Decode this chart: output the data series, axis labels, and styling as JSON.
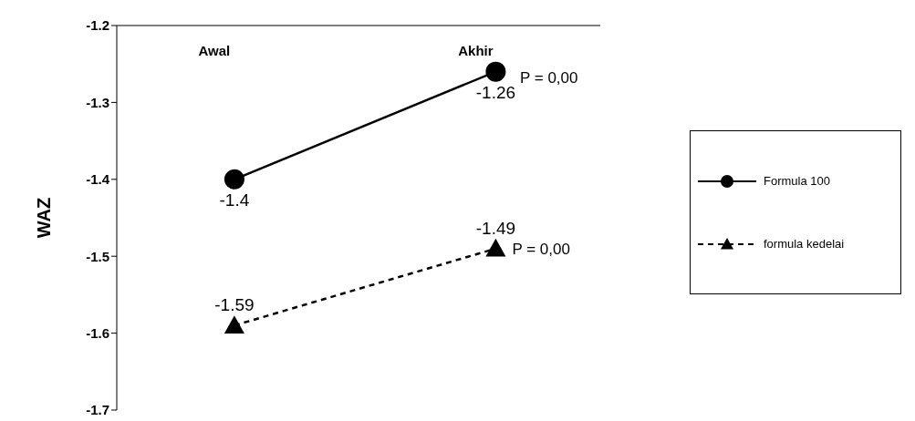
{
  "chart_data": {
    "type": "line",
    "ylabel": "WAZ",
    "categories": [
      "Awal",
      "Akhir"
    ],
    "series": [
      {
        "name": "Formula 100",
        "color": "#000000",
        "values": [
          -1.4,
          -1.26
        ],
        "marker": "circle",
        "line_style": "solid"
      },
      {
        "name": "formula kedelai",
        "color": "#000000",
        "values": [
          -1.59,
          -1.49
        ],
        "marker": "triangle",
        "line_style": "dashed"
      }
    ],
    "ylim": [
      -1.7,
      -1.2
    ],
    "yticks": [
      -1.7,
      -1.6,
      -1.5,
      -1.4,
      -1.3,
      -1.2
    ],
    "grid": false,
    "legend": "right",
    "data_labels": true,
    "annotations": [
      "P = 0,00",
      {
        "text": "P = 0,00",
        "x": "Akhir",
        "y": -1.49
      }
    ]
  }
}
